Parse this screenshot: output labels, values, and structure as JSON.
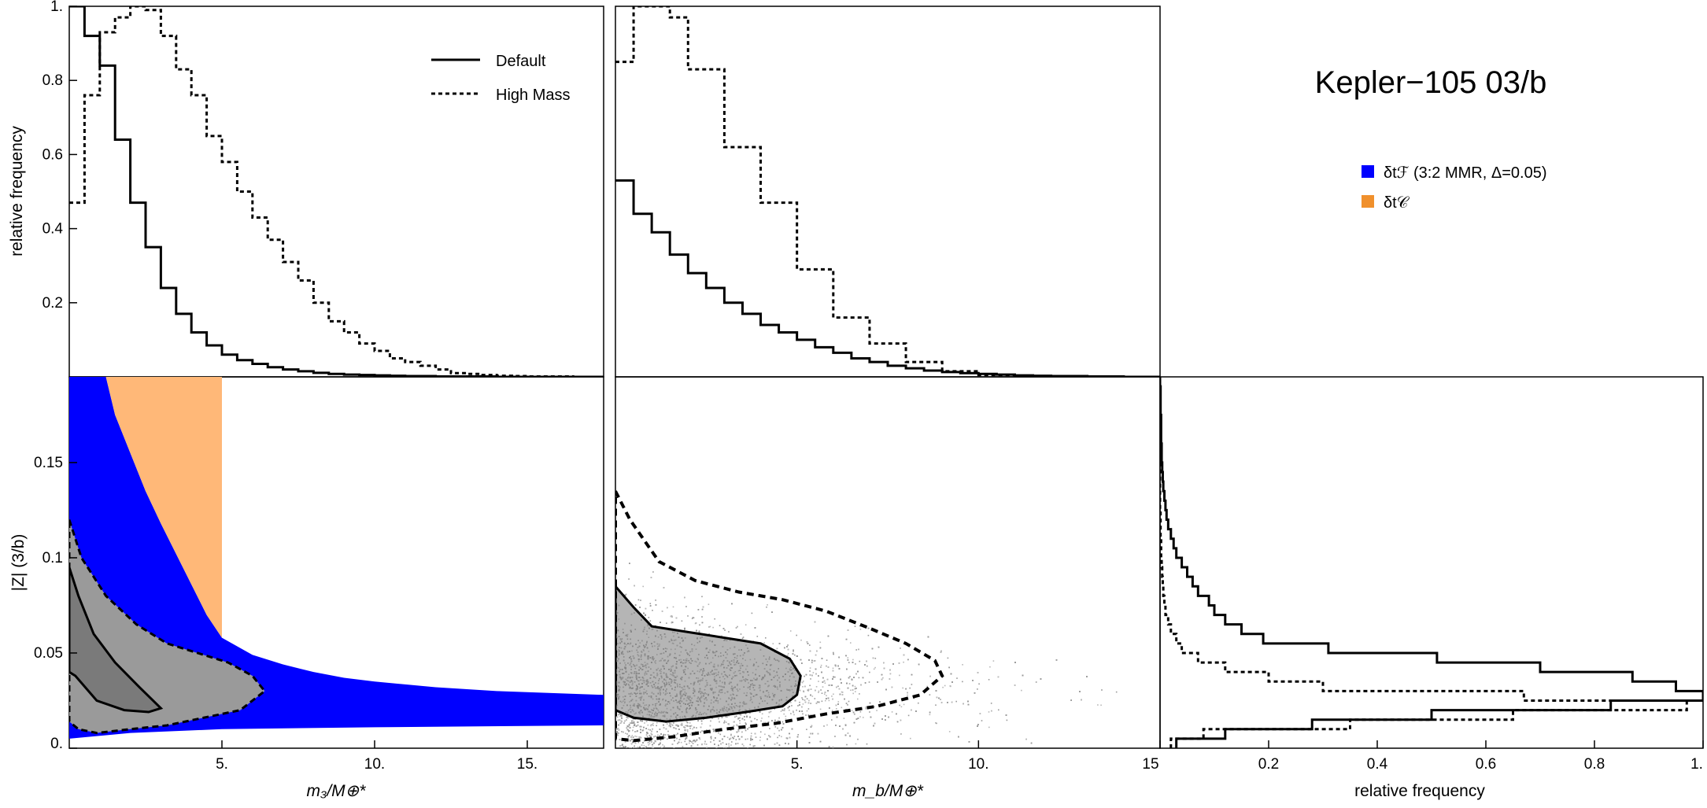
{
  "figure_title": "Kepler−105 03/b",
  "legend_top": {
    "default": "Default",
    "high_mass": "High Mass"
  },
  "legend_region": {
    "blue_label": "δtℱ (3:2 MMR, Δ=0.05)",
    "orange_label": "δt𝒞",
    "blue_color": "#0000ff",
    "orange_color": "#ffb878"
  },
  "axis_labels": {
    "top_left_y": "relative frequency",
    "bottom_left_y": "|Z| (3/b)",
    "bottom_left_x": "m₃/M⊕*",
    "bottom_mid_x": "m_b/M⊕*",
    "bottom_right_x": "relative frequency"
  },
  "chart_data": [
    {
      "id": "hist_m3",
      "type": "line",
      "title": "",
      "xlabel": "m3/M⊕",
      "ylabel": "relative frequency",
      "xlim": [
        0,
        17.5
      ],
      "ylim": [
        0,
        1.0
      ],
      "yticks": [
        0.2,
        0.4,
        0.6,
        0.8,
        1.0
      ],
      "ytick_labels": [
        "0.2",
        "0.4",
        "0.6",
        "0.8",
        "1."
      ],
      "bin_width": 0.5,
      "series": [
        {
          "name": "Default",
          "style": "solid",
          "values": [
            1.0,
            0.92,
            0.84,
            0.64,
            0.47,
            0.35,
            0.24,
            0.17,
            0.12,
            0.085,
            0.06,
            0.045,
            0.035,
            0.026,
            0.02,
            0.015,
            0.011,
            0.008,
            0.006,
            0.005,
            0.004,
            0.003,
            0.002,
            0.002,
            0.001,
            0.001,
            0.001,
            0.001,
            0,
            0,
            0,
            0,
            0,
            0,
            0
          ]
        },
        {
          "name": "High Mass",
          "style": "dashed",
          "values": [
            0.47,
            0.76,
            0.93,
            0.97,
            1.0,
            0.99,
            0.92,
            0.83,
            0.76,
            0.65,
            0.58,
            0.5,
            0.43,
            0.37,
            0.31,
            0.26,
            0.2,
            0.15,
            0.12,
            0.09,
            0.07,
            0.05,
            0.04,
            0.03,
            0.02,
            0.01,
            0.008,
            0.005,
            0.003,
            0.002,
            0.001,
            0.001,
            0.001,
            0,
            0
          ]
        }
      ]
    },
    {
      "id": "hist_mb",
      "type": "line",
      "title": "",
      "xlabel": "mb/M⊕",
      "ylabel": "",
      "xlim": [
        0,
        15
      ],
      "ylim": [
        0,
        1.0
      ],
      "bin_width": 0.5,
      "series": [
        {
          "name": "Default",
          "style": "solid",
          "values": [
            0.53,
            0.44,
            0.39,
            0.33,
            0.28,
            0.24,
            0.2,
            0.17,
            0.14,
            0.12,
            0.1,
            0.08,
            0.065,
            0.05,
            0.04,
            0.03,
            0.023,
            0.017,
            0.013,
            0.01,
            0.008,
            0.006,
            0.004,
            0.003,
            0.002,
            0.002,
            0.001,
            0.001,
            0,
            0
          ]
        },
        {
          "name": "High Mass",
          "style": "dashed",
          "values": [
            0.85,
            1.0,
            1.0,
            0.97,
            0.83,
            0.83,
            0.62,
            0.62,
            0.47,
            0.47,
            0.29,
            0.29,
            0.16,
            0.16,
            0.09,
            0.09,
            0.04,
            0.04,
            0.015,
            0.015,
            0.005,
            0.005,
            0.002,
            0.002,
            0.001,
            0,
            0,
            0,
            0,
            0
          ]
        }
      ]
    },
    {
      "id": "region_m3_z",
      "type": "area",
      "title": "",
      "xlabel": "m3/M⊕",
      "ylabel": "|Z| (3/b)",
      "xlim": [
        0,
        17.5
      ],
      "ylim": [
        0,
        0.195
      ],
      "xticks": [
        5,
        10,
        15
      ],
      "xtick_labels": [
        "5.",
        "10.",
        "15."
      ],
      "yticks": [
        0,
        0.05,
        0.1,
        0.15
      ],
      "ytick_labels": [
        "0.",
        "0.05",
        "0.1",
        "0.15"
      ],
      "blue_region": {
        "label": "δtℱ (3:2 MMR, Δ=0.05)",
        "upper_boundary": {
          "x": [
            1.2,
            1.5,
            2,
            2.5,
            3,
            3.5,
            4,
            4.5,
            5,
            6,
            7,
            8,
            9,
            10,
            12,
            14,
            17.5
          ],
          "y": [
            0.195,
            0.175,
            0.155,
            0.135,
            0.118,
            0.102,
            0.086,
            0.07,
            0.058,
            0.049,
            0.044,
            0.04,
            0.037,
            0.035,
            0.032,
            0.03,
            0.028
          ]
        },
        "lower_boundary": {
          "x": [
            0,
            2,
            5,
            10,
            17.5
          ],
          "y": [
            0.005,
            0.008,
            0.01,
            0.011,
            0.012
          ]
        }
      },
      "orange_region": {
        "label": "δt𝒞",
        "x_max": 5,
        "upper_boundary": {
          "x": [
            1.25,
            5
          ],
          "y": [
            0.195,
            0.195
          ]
        },
        "lower_boundary": {
          "x": [
            1.2,
            1.5,
            2,
            2.5,
            3,
            3.5,
            4,
            4.5,
            5
          ],
          "y": [
            0.195,
            0.175,
            0.155,
            0.135,
            0.118,
            0.102,
            0.086,
            0.07,
            0.058
          ]
        }
      },
      "samples": {
        "contour_inner": {
          "x": [
            0,
            0.3,
            0.8,
            1.5,
            2.3,
            3.0,
            2.6,
            1.8,
            0.9,
            0.2,
            0
          ],
          "y": [
            0.095,
            0.08,
            0.06,
            0.045,
            0.032,
            0.021,
            0.019,
            0.02,
            0.025,
            0.038,
            0.04
          ]
        },
        "contour_outer": {
          "x": [
            0,
            0.4,
            1.2,
            2.2,
            3.2,
            4.2,
            5.2,
            6.0,
            6.4,
            5.6,
            4.4,
            3.2,
            2.0,
            0.9,
            0.3,
            0
          ],
          "y": [
            0.12,
            0.1,
            0.08,
            0.065,
            0.055,
            0.05,
            0.045,
            0.038,
            0.03,
            0.02,
            0.016,
            0.012,
            0.01,
            0.008,
            0.01,
            0.014
          ]
        }
      }
    },
    {
      "id": "scatter_mb_z",
      "type": "scatter",
      "title": "",
      "xlabel": "mb/M⊕",
      "ylabel": "",
      "xlim": [
        0,
        15
      ],
      "ylim": [
        0,
        0.195
      ],
      "xticks": [
        5,
        10,
        15
      ],
      "xtick_labels": [
        "5.",
        "10.",
        "15"
      ],
      "contour_inner": {
        "x": [
          0,
          0.5,
          1.0,
          2.0,
          3.0,
          4.0,
          4.8,
          5.1,
          5.0,
          4.6,
          3.6,
          2.5,
          1.4,
          0.5,
          0
        ],
        "y": [
          0.085,
          0.074,
          0.064,
          0.061,
          0.058,
          0.055,
          0.047,
          0.038,
          0.028,
          0.022,
          0.019,
          0.016,
          0.014,
          0.016,
          0.02
        ]
      },
      "contour_outer": {
        "x": [
          0,
          0.4,
          1.2,
          2.2,
          3.4,
          4.6,
          5.8,
          7.0,
          8.0,
          8.8,
          9.0,
          8.4,
          7.2,
          5.8,
          4.4,
          3.0,
          1.6,
          0.5,
          0
        ],
        "y": [
          0.135,
          0.12,
          0.098,
          0.088,
          0.082,
          0.078,
          0.072,
          0.063,
          0.055,
          0.046,
          0.038,
          0.028,
          0.022,
          0.018,
          0.013,
          0.01,
          0.006,
          0.004,
          0.005
        ]
      }
    },
    {
      "id": "hist_z",
      "type": "line",
      "title": "",
      "xlabel": "relative frequency",
      "ylabel": "",
      "xlim": [
        0,
        1.0
      ],
      "ylim": [
        0,
        0.195
      ],
      "xticks": [
        0.2,
        0.4,
        0.6,
        0.8,
        1.0
      ],
      "xtick_labels": [
        "0.2",
        "0.4",
        "0.6",
        "0.8",
        "1."
      ],
      "bin_width": 0.005,
      "orientation": "horizontal",
      "series": [
        {
          "name": "Default",
          "style": "solid",
          "values": [
            0.03,
            0.12,
            0.28,
            0.5,
            0.83,
            1.0,
            0.95,
            0.87,
            0.7,
            0.51,
            0.31,
            0.19,
            0.15,
            0.12,
            0.1,
            0.09,
            0.07,
            0.06,
            0.05,
            0.04,
            0.03,
            0.025,
            0.02,
            0.015,
            0.012,
            0.01,
            0.008,
            0.006,
            0.005,
            0.004,
            0.003,
            0.003,
            0.002,
            0.002,
            0.002,
            0.001,
            0.001,
            0.001,
            0
          ]
        },
        {
          "name": "High Mass",
          "style": "dashed",
          "values": [
            0.02,
            0.08,
            0.35,
            0.65,
            0.97,
            0.67,
            0.3,
            0.2,
            0.12,
            0.07,
            0.04,
            0.03,
            0.02,
            0.015,
            0.01,
            0.008,
            0.006,
            0.005,
            0.004,
            0.003,
            0.002,
            0.002,
            0.001,
            0.001,
            0.001,
            0,
            0,
            0,
            0,
            0,
            0,
            0,
            0,
            0,
            0,
            0,
            0,
            0,
            0
          ]
        }
      ]
    }
  ]
}
